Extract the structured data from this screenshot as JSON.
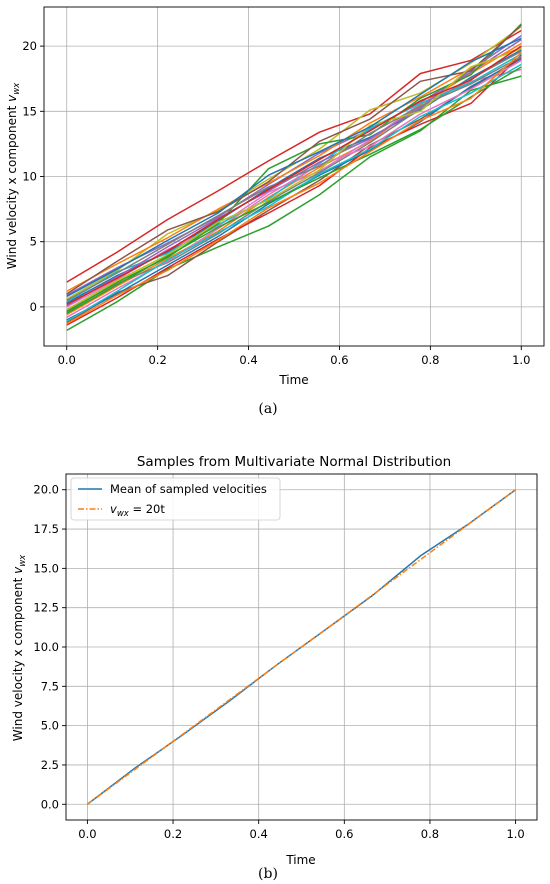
{
  "chart_data": [
    {
      "type": "line",
      "panel_label": "(a)",
      "title": "",
      "xlabel": "Time",
      "ylabel": "Wind velocity x component v_wx",
      "xlim": [
        -0.05,
        1.05
      ],
      "ylim": [
        -3,
        23
      ],
      "xticks": [
        0.0,
        0.2,
        0.4,
        0.6,
        0.8,
        1.0
      ],
      "xtick_labels": [
        "0.0",
        "0.2",
        "0.4",
        "0.6",
        "0.8",
        "1.0"
      ],
      "yticks": [
        0,
        5,
        10,
        15,
        20
      ],
      "ytick_labels": [
        "0",
        "5",
        "10",
        "15",
        "20"
      ],
      "grid": true,
      "legend": "none",
      "x": [
        0.0,
        0.111,
        0.222,
        0.333,
        0.444,
        0.556,
        0.667,
        0.778,
        0.889,
        1.0
      ],
      "series": [
        {
          "color": "#1f77b4",
          "values": [
            0.3,
            2.4,
            4.2,
            6.6,
            9.1,
            11.4,
            13.0,
            15.1,
            17.6,
            19.7
          ]
        },
        {
          "color": "#ff7f0e",
          "values": [
            -0.6,
            1.6,
            3.7,
            5.8,
            8.4,
            10.7,
            12.7,
            15.5,
            17.9,
            20.2
          ]
        },
        {
          "color": "#2ca02c",
          "values": [
            -1.8,
            0.4,
            2.9,
            4.6,
            6.2,
            8.6,
            11.5,
            13.5,
            16.6,
            17.7
          ]
        },
        {
          "color": "#d62728",
          "values": [
            1.9,
            4.2,
            6.7,
            8.9,
            11.2,
            13.4,
            14.8,
            17.9,
            18.9,
            21.2
          ]
        },
        {
          "color": "#9467bd",
          "values": [
            0.9,
            3.0,
            4.9,
            6.9,
            9.4,
            11.8,
            13.6,
            15.7,
            18.0,
            20.5
          ]
        },
        {
          "color": "#8c564b",
          "values": [
            -1.2,
            1.1,
            2.4,
            5.0,
            7.4,
            9.7,
            12.4,
            14.4,
            16.8,
            19.1
          ]
        },
        {
          "color": "#e377c2",
          "values": [
            0.0,
            2.1,
            4.4,
            6.2,
            8.8,
            10.4,
            12.8,
            15.6,
            17.3,
            18.2
          ]
        },
        {
          "color": "#7f7f7f",
          "values": [
            -0.3,
            1.8,
            3.4,
            5.6,
            8.1,
            10.3,
            12.6,
            15.2,
            17.5,
            19.6
          ]
        },
        {
          "color": "#bcbd22",
          "values": [
            0.6,
            2.8,
            5.6,
            7.4,
            9.8,
            12.1,
            15.1,
            16.4,
            18.7,
            21.5
          ]
        },
        {
          "color": "#17becf",
          "values": [
            0.4,
            2.7,
            4.1,
            6.3,
            8.3,
            11.0,
            13.7,
            15.6,
            17.2,
            19.4
          ]
        },
        {
          "color": "#1f77b4",
          "values": [
            -1.0,
            1.0,
            3.2,
            5.4,
            7.9,
            10.1,
            12.0,
            14.2,
            16.9,
            19.0
          ]
        },
        {
          "color": "#ff7f0e",
          "values": [
            1.2,
            3.3,
            5.3,
            7.5,
            9.5,
            11.6,
            14.1,
            16.1,
            18.3,
            19.9
          ]
        },
        {
          "color": "#2ca02c",
          "values": [
            -0.4,
            1.9,
            3.8,
            6.4,
            10.6,
            12.5,
            13.2,
            16.0,
            17.8,
            21.7
          ]
        },
        {
          "color": "#d62728",
          "values": [
            -1.4,
            0.7,
            3.0,
            5.2,
            7.2,
            9.3,
            12.2,
            14.0,
            15.6,
            19.3
          ]
        },
        {
          "color": "#9467bd",
          "values": [
            0.1,
            2.3,
            4.6,
            6.8,
            8.9,
            11.1,
            12.9,
            15.3,
            18.2,
            20.8
          ]
        },
        {
          "color": "#8c564b",
          "values": [
            1.0,
            3.5,
            5.9,
            7.3,
            9.6,
            12.7,
            14.4,
            17.3,
            18.1,
            21.6
          ]
        },
        {
          "color": "#e377c2",
          "values": [
            -0.8,
            1.4,
            3.5,
            6.0,
            8.6,
            10.9,
            12.3,
            14.8,
            16.7,
            18.9
          ]
        },
        {
          "color": "#7f7f7f",
          "values": [
            0.5,
            2.6,
            4.8,
            7.0,
            9.2,
            10.8,
            13.3,
            15.4,
            17.1,
            19.2
          ]
        },
        {
          "color": "#bcbd22",
          "values": [
            -0.2,
            2.0,
            4.0,
            6.5,
            8.2,
            10.5,
            13.9,
            15.0,
            18.4,
            19.8
          ]
        },
        {
          "color": "#17becf",
          "values": [
            -1.1,
            1.2,
            3.6,
            5.7,
            7.7,
            10.2,
            12.1,
            14.6,
            16.4,
            18.6
          ]
        },
        {
          "color": "#1f77b4",
          "values": [
            0.8,
            2.9,
            5.1,
            7.2,
            10.1,
            11.9,
            13.8,
            16.3,
            18.8,
            20.6
          ]
        },
        {
          "color": "#2ca02c",
          "values": [
            -0.5,
            1.7,
            3.9,
            6.1,
            8.0,
            9.9,
            11.7,
            13.6,
            16.1,
            18.4
          ]
        },
        {
          "color": "#d62728",
          "values": [
            0.2,
            2.2,
            4.3,
            6.7,
            9.0,
            11.3,
            13.5,
            15.8,
            17.4,
            20.0
          ]
        },
        {
          "color": "#ff7f0e",
          "values": [
            -1.3,
            0.9,
            2.8,
            5.1,
            7.6,
            9.5,
            11.9,
            14.3,
            16.0,
            19.5
          ]
        }
      ]
    },
    {
      "type": "line",
      "panel_label": "(b)",
      "title": "Samples from Multivariate Normal Distribution",
      "xlabel": "Time",
      "ylabel": "Wind velocity x component v_wx",
      "xlim": [
        -0.05,
        1.05
      ],
      "ylim": [
        -1.0,
        21.0
      ],
      "xticks": [
        0.0,
        0.2,
        0.4,
        0.6,
        0.8,
        1.0
      ],
      "xtick_labels": [
        "0.0",
        "0.2",
        "0.4",
        "0.6",
        "0.8",
        "1.0"
      ],
      "yticks": [
        0.0,
        2.5,
        5.0,
        7.5,
        10.0,
        12.5,
        15.0,
        17.5,
        20.0
      ],
      "ytick_labels": [
        "0.0",
        "2.5",
        "5.0",
        "7.5",
        "10.0",
        "12.5",
        "15.0",
        "17.5",
        "20.0"
      ],
      "grid": true,
      "legend": "top-left",
      "x": [
        0.0,
        0.111,
        0.222,
        0.333,
        0.444,
        0.556,
        0.667,
        0.778,
        0.889,
        1.0
      ],
      "series": [
        {
          "name": "Mean of sampled velocities",
          "color": "#1f77b4",
          "style": "solid",
          "values": [
            0.0,
            2.3,
            4.4,
            6.6,
            8.9,
            11.1,
            13.3,
            15.8,
            17.8,
            20.0
          ]
        },
        {
          "name": "v_wx = 20t",
          "color": "#ff7f0e",
          "style": "dashdot",
          "values": [
            0.0,
            2.22,
            4.44,
            6.67,
            8.89,
            11.11,
            13.33,
            15.56,
            17.78,
            20.0
          ]
        }
      ],
      "legend_entries": [
        {
          "pre": "Mean of sampled velocities",
          "var": "",
          "sub": "",
          "post": ""
        },
        {
          "pre": "",
          "var": "v",
          "sub": "wx",
          "post": " = 20t"
        }
      ]
    }
  ],
  "captions": {
    "a": "(a)",
    "b": "(b)"
  },
  "labels": {
    "ylabel_prefix": "Wind velocity x component ",
    "ylabel_var": "v",
    "ylabel_sub": "wx"
  }
}
